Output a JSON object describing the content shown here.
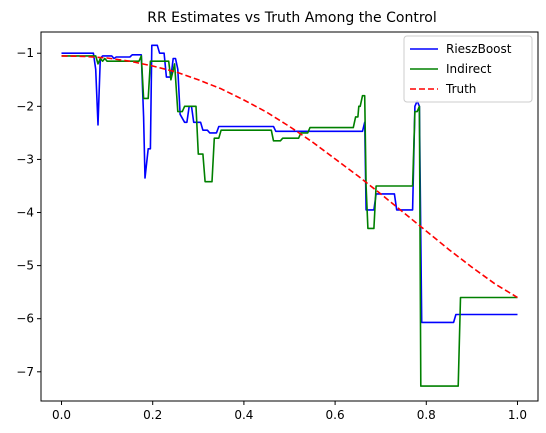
{
  "chart_data": {
    "type": "line",
    "title": "RR Estimates vs Truth Among the Control",
    "xlabel": "",
    "ylabel": "",
    "xlim": [
      -0.045,
      1.045
    ],
    "ylim": [
      -7.55,
      -0.6
    ],
    "xticks": [
      0.0,
      0.2,
      0.4,
      0.6,
      0.8,
      1.0
    ],
    "xtick_labels": [
      "0.0",
      "0.2",
      "0.4",
      "0.6",
      "0.8",
      "1.0"
    ],
    "yticks": [
      -1,
      -2,
      -3,
      -4,
      -5,
      -6,
      -7
    ],
    "ytick_labels": [
      "−1",
      "−2",
      "−3",
      "−4",
      "−5",
      "−6",
      "−7"
    ],
    "grid": false,
    "legend_position": "top-right",
    "series": [
      {
        "name": "RieszBoost",
        "color": "#0000ff",
        "style": "solid",
        "points": [
          [
            0.0,
            -1.0
          ],
          [
            0.07,
            -1.0
          ],
          [
            0.075,
            -1.3
          ],
          [
            0.08,
            -2.35
          ],
          [
            0.085,
            -1.1
          ],
          [
            0.09,
            -1.05
          ],
          [
            0.11,
            -1.05
          ],
          [
            0.115,
            -1.1
          ],
          [
            0.12,
            -1.07
          ],
          [
            0.15,
            -1.07
          ],
          [
            0.155,
            -1.03
          ],
          [
            0.175,
            -1.03
          ],
          [
            0.18,
            -2.2
          ],
          [
            0.183,
            -3.35
          ],
          [
            0.19,
            -2.8
          ],
          [
            0.195,
            -2.8
          ],
          [
            0.198,
            -0.85
          ],
          [
            0.21,
            -0.85
          ],
          [
            0.215,
            -1.0
          ],
          [
            0.225,
            -1.0
          ],
          [
            0.23,
            -1.45
          ],
          [
            0.24,
            -1.45
          ],
          [
            0.245,
            -1.1
          ],
          [
            0.25,
            -1.1
          ],
          [
            0.255,
            -1.3
          ],
          [
            0.26,
            -2.15
          ],
          [
            0.27,
            -2.3
          ],
          [
            0.275,
            -2.3
          ],
          [
            0.28,
            -2.0
          ],
          [
            0.285,
            -2.0
          ],
          [
            0.29,
            -2.3
          ],
          [
            0.305,
            -2.3
          ],
          [
            0.31,
            -2.45
          ],
          [
            0.32,
            -2.45
          ],
          [
            0.325,
            -2.5
          ],
          [
            0.34,
            -2.5
          ],
          [
            0.345,
            -2.38
          ],
          [
            0.465,
            -2.38
          ],
          [
            0.47,
            -2.47
          ],
          [
            0.66,
            -2.47
          ],
          [
            0.665,
            -2.3
          ],
          [
            0.668,
            -3.95
          ],
          [
            0.685,
            -3.95
          ],
          [
            0.69,
            -3.65
          ],
          [
            0.73,
            -3.65
          ],
          [
            0.735,
            -3.95
          ],
          [
            0.77,
            -3.95
          ],
          [
            0.775,
            -2.0
          ],
          [
            0.78,
            -1.9
          ],
          [
            0.785,
            -2.0
          ],
          [
            0.79,
            -6.07
          ],
          [
            0.86,
            -6.07
          ],
          [
            0.865,
            -5.92
          ],
          [
            1.0,
            -5.92
          ]
        ]
      },
      {
        "name": "Indirect",
        "color": "#008000",
        "style": "solid",
        "points": [
          [
            0.0,
            -1.05
          ],
          [
            0.075,
            -1.05
          ],
          [
            0.08,
            -1.2
          ],
          [
            0.085,
            -1.1
          ],
          [
            0.09,
            -1.15
          ],
          [
            0.095,
            -1.1
          ],
          [
            0.1,
            -1.15
          ],
          [
            0.17,
            -1.15
          ],
          [
            0.175,
            -1.05
          ],
          [
            0.18,
            -1.85
          ],
          [
            0.19,
            -1.85
          ],
          [
            0.195,
            -1.15
          ],
          [
            0.235,
            -1.15
          ],
          [
            0.24,
            -1.5
          ],
          [
            0.248,
            -1.2
          ],
          [
            0.255,
            -2.1
          ],
          [
            0.265,
            -2.1
          ],
          [
            0.27,
            -2.0
          ],
          [
            0.295,
            -2.0
          ],
          [
            0.3,
            -2.9
          ],
          [
            0.31,
            -2.9
          ],
          [
            0.315,
            -3.42
          ],
          [
            0.33,
            -3.42
          ],
          [
            0.335,
            -2.6
          ],
          [
            0.345,
            -2.6
          ],
          [
            0.35,
            -2.45
          ],
          [
            0.46,
            -2.45
          ],
          [
            0.465,
            -2.65
          ],
          [
            0.48,
            -2.65
          ],
          [
            0.485,
            -2.6
          ],
          [
            0.52,
            -2.6
          ],
          [
            0.525,
            -2.5
          ],
          [
            0.54,
            -2.5
          ],
          [
            0.545,
            -2.4
          ],
          [
            0.64,
            -2.4
          ],
          [
            0.645,
            -2.2
          ],
          [
            0.65,
            -2.2
          ],
          [
            0.652,
            -2.0
          ],
          [
            0.655,
            -2.0
          ],
          [
            0.66,
            -1.8
          ],
          [
            0.665,
            -1.8
          ],
          [
            0.668,
            -3.5
          ],
          [
            0.672,
            -4.3
          ],
          [
            0.685,
            -4.3
          ],
          [
            0.69,
            -3.5
          ],
          [
            0.77,
            -3.5
          ],
          [
            0.775,
            -2.1
          ],
          [
            0.78,
            -2.1
          ],
          [
            0.785,
            -2.0
          ],
          [
            0.788,
            -7.27
          ],
          [
            0.87,
            -7.27
          ],
          [
            0.875,
            -5.6
          ],
          [
            1.0,
            -5.6
          ]
        ]
      },
      {
        "name": "Truth",
        "color": "#ff0000",
        "style": "dashed",
        "points": [
          [
            0.0,
            -1.05
          ],
          [
            0.05,
            -1.06
          ],
          [
            0.1,
            -1.09
          ],
          [
            0.15,
            -1.15
          ],
          [
            0.2,
            -1.24
          ],
          [
            0.25,
            -1.35
          ],
          [
            0.3,
            -1.5
          ],
          [
            0.35,
            -1.67
          ],
          [
            0.4,
            -1.88
          ],
          [
            0.45,
            -2.11
          ],
          [
            0.5,
            -2.38
          ],
          [
            0.55,
            -2.67
          ],
          [
            0.6,
            -2.99
          ],
          [
            0.65,
            -3.31
          ],
          [
            0.7,
            -3.65
          ],
          [
            0.75,
            -4.0
          ],
          [
            0.8,
            -4.35
          ],
          [
            0.85,
            -4.7
          ],
          [
            0.9,
            -5.03
          ],
          [
            0.95,
            -5.34
          ],
          [
            1.0,
            -5.6
          ]
        ]
      }
    ]
  }
}
